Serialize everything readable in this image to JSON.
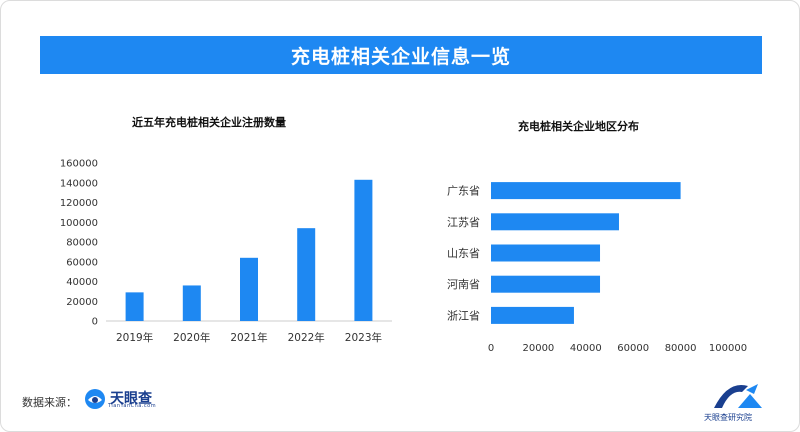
{
  "banner": {
    "title": "充电桩相关企业信息一览"
  },
  "chart_data": [
    {
      "type": "bar",
      "title": "近五年充电桩相关企业注册数量",
      "xlabel": "",
      "ylabel": "",
      "categories": [
        "2019年",
        "2020年",
        "2021年",
        "2022年",
        "2023年"
      ],
      "values": [
        29000,
        36000,
        64000,
        94000,
        143000
      ],
      "ylim": [
        0,
        160000
      ],
      "yticks": [
        "0",
        "20000",
        "40000",
        "60000",
        "80000",
        "100000",
        "120000",
        "140000",
        "160000"
      ],
      "grid": false,
      "color": "#1e88f2"
    },
    {
      "type": "bar",
      "orientation": "horizontal",
      "title": "充电桩相关企业地区分布",
      "xlabel": "",
      "ylabel": "",
      "categories": [
        "广东省",
        "江苏省",
        "山东省",
        "河南省",
        "浙江省"
      ],
      "values": [
        80000,
        54000,
        46000,
        46000,
        35000
      ],
      "xlim": [
        0,
        100000
      ],
      "xticks": [
        "0",
        "20000",
        "40000",
        "60000",
        "80000",
        "100000"
      ],
      "grid": false,
      "color": "#1e88f2"
    }
  ],
  "footer": {
    "source_label": "数据来源：",
    "source_logo_text": "天眼查",
    "source_logo_sub": "TianYanCha.com",
    "institute_logo_text": "天眼查研究院"
  },
  "colors": {
    "accent": "#1e88f2",
    "brand": "#1a3f8f"
  }
}
